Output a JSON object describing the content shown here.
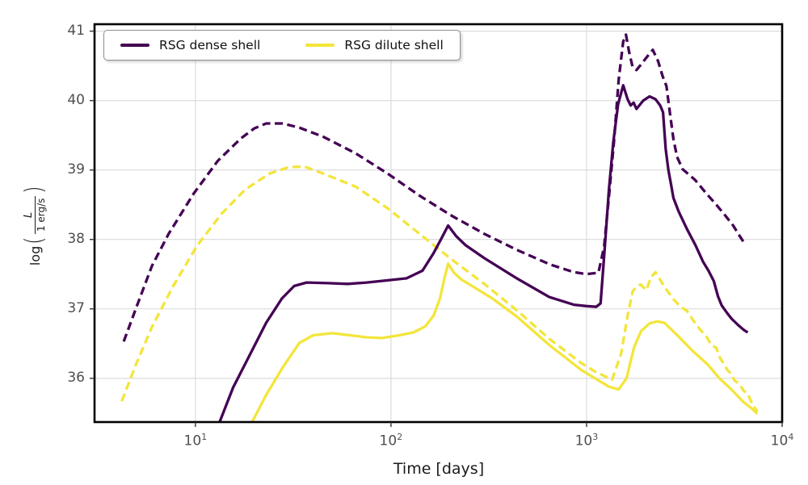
{
  "figure": {
    "xlabel": "Time [days]",
    "ylabel_parts": {
      "prefix": "log",
      "open": "(",
      "numerator": "L",
      "denominator": "1 erg/s",
      "close": ")"
    },
    "legend": [
      {
        "label": "RSG dense shell",
        "color": "#440154"
      },
      {
        "label": "RSG dilute shell",
        "color": "#f3e53b"
      }
    ]
  },
  "chart_data": {
    "type": "line",
    "title": "",
    "xlabel": "Time [days]",
    "ylabel": "log(L / 1 erg/s)",
    "x_scale": "log",
    "xlim": [
      3.05,
      10000
    ],
    "ylim": [
      35.37,
      41.1
    ],
    "x_ticks": [
      10,
      100,
      1000,
      10000
    ],
    "y_ticks": [
      36,
      37,
      38,
      39,
      40,
      41
    ],
    "grid": true,
    "legend_position": "upper left",
    "series": [
      {
        "id": "rsg-dilute-shell-dashed",
        "legend_label": "RSG dilute shell",
        "color": "#f3e53b",
        "dash": "dashed",
        "points": [
          [
            4.2,
            35.67
          ],
          [
            5,
            36.22
          ],
          [
            6,
            36.74
          ],
          [
            7.7,
            37.33
          ],
          [
            10.2,
            37.91
          ],
          [
            13.6,
            38.37
          ],
          [
            18,
            38.72
          ],
          [
            24,
            38.95
          ],
          [
            30,
            39.04
          ],
          [
            36,
            39.05
          ],
          [
            45,
            38.95
          ],
          [
            66,
            38.76
          ],
          [
            96,
            38.45
          ],
          [
            140,
            38.08
          ],
          [
            205,
            37.71
          ],
          [
            300,
            37.36
          ],
          [
            440,
            36.98
          ],
          [
            645,
            36.57
          ],
          [
            940,
            36.22
          ],
          [
            1100,
            36.1
          ],
          [
            1350,
            35.98
          ],
          [
            1500,
            36.35
          ],
          [
            1620,
            36.9
          ],
          [
            1720,
            37.25
          ],
          [
            1800,
            37.32
          ],
          [
            1890,
            37.35
          ],
          [
            2020,
            37.27
          ],
          [
            2130,
            37.45
          ],
          [
            2250,
            37.53
          ],
          [
            2400,
            37.4
          ],
          [
            2570,
            37.27
          ],
          [
            2800,
            37.13
          ],
          [
            3000,
            37.04
          ],
          [
            3260,
            36.97
          ],
          [
            3500,
            36.84
          ],
          [
            3760,
            36.72
          ],
          [
            4100,
            36.6
          ],
          [
            4340,
            36.48
          ],
          [
            4600,
            36.44
          ],
          [
            4800,
            36.3
          ],
          [
            5250,
            36.12
          ],
          [
            5500,
            36.06
          ],
          [
            5700,
            35.97
          ],
          [
            6050,
            35.92
          ],
          [
            6350,
            35.82
          ],
          [
            6670,
            35.78
          ],
          [
            7000,
            35.64
          ],
          [
            7470,
            35.52
          ]
        ]
      },
      {
        "id": "rsg-dilute-shell-solid",
        "legend_label": "RSG dilute shell",
        "color": "#f3e53b",
        "dash": "solid",
        "points": [
          [
            19.5,
            35.37
          ],
          [
            23,
            35.76
          ],
          [
            28,
            36.16
          ],
          [
            34,
            36.51
          ],
          [
            40,
            36.62
          ],
          [
            50,
            36.65
          ],
          [
            62,
            36.62
          ],
          [
            75,
            36.59
          ],
          [
            90,
            36.58
          ],
          [
            110,
            36.62
          ],
          [
            130,
            36.66
          ],
          [
            150,
            36.75
          ],
          [
            165,
            36.9
          ],
          [
            178,
            37.15
          ],
          [
            188,
            37.45
          ],
          [
            196,
            37.65
          ],
          [
            210,
            37.52
          ],
          [
            230,
            37.42
          ],
          [
            270,
            37.3
          ],
          [
            330,
            37.15
          ],
          [
            440,
            36.89
          ],
          [
            645,
            36.48
          ],
          [
            940,
            36.12
          ],
          [
            1150,
            35.97
          ],
          [
            1300,
            35.88
          ],
          [
            1460,
            35.84
          ],
          [
            1600,
            36.0
          ],
          [
            1750,
            36.45
          ],
          [
            1900,
            36.68
          ],
          [
            2100,
            36.79
          ],
          [
            2300,
            36.82
          ],
          [
            2500,
            36.8
          ],
          [
            2960,
            36.6
          ],
          [
            3470,
            36.4
          ],
          [
            4160,
            36.2
          ],
          [
            4780,
            36.0
          ],
          [
            5500,
            35.84
          ],
          [
            6330,
            35.66
          ],
          [
            6960,
            35.57
          ],
          [
            7470,
            35.49
          ]
        ]
      },
      {
        "id": "rsg-dense-shell-dashed",
        "legend_label": "RSG dense shell",
        "color": "#440154",
        "dash": "dashed",
        "points": [
          [
            4.3,
            36.53
          ],
          [
            5,
            37.03
          ],
          [
            6,
            37.62
          ],
          [
            7.3,
            38.08
          ],
          [
            9.8,
            38.66
          ],
          [
            13,
            39.13
          ],
          [
            17,
            39.45
          ],
          [
            20,
            39.6
          ],
          [
            23,
            39.67
          ],
          [
            28,
            39.67
          ],
          [
            34,
            39.61
          ],
          [
            45,
            39.48
          ],
          [
            66,
            39.24
          ],
          [
            96,
            38.95
          ],
          [
            140,
            38.63
          ],
          [
            205,
            38.34
          ],
          [
            300,
            38.08
          ],
          [
            440,
            37.85
          ],
          [
            650,
            37.64
          ],
          [
            860,
            37.53
          ],
          [
            1000,
            37.5
          ],
          [
            1150,
            37.52
          ],
          [
            1230,
            37.9
          ],
          [
            1300,
            38.6
          ],
          [
            1380,
            39.4
          ],
          [
            1460,
            40.3
          ],
          [
            1540,
            40.85
          ],
          [
            1590,
            40.95
          ],
          [
            1650,
            40.7
          ],
          [
            1720,
            40.48
          ],
          [
            1800,
            40.44
          ],
          [
            1900,
            40.52
          ],
          [
            2050,
            40.64
          ],
          [
            2180,
            40.73
          ],
          [
            2320,
            40.57
          ],
          [
            2450,
            40.35
          ],
          [
            2560,
            40.21
          ],
          [
            2660,
            39.85
          ],
          [
            2780,
            39.45
          ],
          [
            2900,
            39.19
          ],
          [
            3100,
            39.01
          ],
          [
            3580,
            38.86
          ],
          [
            4100,
            38.66
          ],
          [
            4640,
            38.49
          ],
          [
            5100,
            38.35
          ],
          [
            5620,
            38.2
          ],
          [
            6000,
            38.07
          ],
          [
            6460,
            37.93
          ]
        ]
      },
      {
        "id": "rsg-dense-shell-solid",
        "legend_label": "RSG dense shell",
        "color": "#440154",
        "dash": "solid",
        "points": [
          [
            13.3,
            35.37
          ],
          [
            15.6,
            35.87
          ],
          [
            19,
            36.34
          ],
          [
            23,
            36.8
          ],
          [
            27.7,
            37.15
          ],
          [
            32,
            37.33
          ],
          [
            37,
            37.38
          ],
          [
            48,
            37.37
          ],
          [
            60,
            37.36
          ],
          [
            75,
            37.38
          ],
          [
            95,
            37.41
          ],
          [
            120,
            37.44
          ],
          [
            145,
            37.55
          ],
          [
            165,
            37.8
          ],
          [
            180,
            38.0
          ],
          [
            196,
            38.2
          ],
          [
            215,
            38.05
          ],
          [
            240,
            37.92
          ],
          [
            300,
            37.73
          ],
          [
            440,
            37.44
          ],
          [
            645,
            37.17
          ],
          [
            860,
            37.06
          ],
          [
            1000,
            37.04
          ],
          [
            1120,
            37.03
          ],
          [
            1180,
            37.08
          ],
          [
            1240,
            37.9
          ],
          [
            1300,
            38.7
          ],
          [
            1370,
            39.4
          ],
          [
            1450,
            39.95
          ],
          [
            1540,
            40.22
          ],
          [
            1620,
            40.02
          ],
          [
            1680,
            39.93
          ],
          [
            1740,
            39.97
          ],
          [
            1800,
            39.88
          ],
          [
            1950,
            40.0
          ],
          [
            2100,
            40.06
          ],
          [
            2250,
            40.02
          ],
          [
            2380,
            39.93
          ],
          [
            2460,
            39.83
          ],
          [
            2540,
            39.3
          ],
          [
            2620,
            39.0
          ],
          [
            2700,
            38.8
          ],
          [
            2780,
            38.6
          ],
          [
            2960,
            38.4
          ],
          [
            3260,
            38.15
          ],
          [
            3600,
            37.92
          ],
          [
            3940,
            37.68
          ],
          [
            4200,
            37.55
          ],
          [
            4470,
            37.4
          ],
          [
            4700,
            37.18
          ],
          [
            4910,
            37.05
          ],
          [
            5200,
            36.95
          ],
          [
            5510,
            36.86
          ],
          [
            5940,
            36.77
          ],
          [
            6350,
            36.7
          ],
          [
            6670,
            36.66
          ]
        ]
      }
    ]
  }
}
